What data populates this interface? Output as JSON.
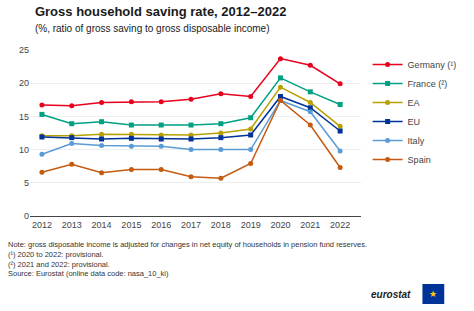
{
  "chart_data": {
    "type": "line",
    "title": "Gross household saving rate, 2012–2022",
    "subtitle": "(%, ratio of gross saving to gross disposable income)",
    "annotations": [
      "Note: gross disposable income is adjusted for changes in net equity of households in pension fund reserves.",
      "(¹) 2020 to 2022: provisional.",
      "(²) 2021 and 2022: provisional.",
      "Source: Eurostat (online data code: nasa_10_ki)",
      "eurostat",
      "★"
    ],
    "x": [
      2012,
      2013,
      2014,
      2015,
      2016,
      2017,
      2018,
      2019,
      2020,
      2021,
      2022
    ],
    "series": [
      {
        "name": "Germany (¹)",
        "color": "#e8001c",
        "marker": "circle",
        "values": [
          16.7,
          16.6,
          17.1,
          17.2,
          17.2,
          17.6,
          18.4,
          18.0,
          23.7,
          22.7,
          19.9
        ]
      },
      {
        "name": "France (²)",
        "color": "#00a082",
        "marker": "square",
        "values": [
          15.3,
          13.9,
          14.2,
          13.7,
          13.7,
          13.7,
          13.9,
          14.8,
          20.8,
          18.7,
          16.8
        ]
      },
      {
        "name": "EA",
        "color": "#b8a000",
        "marker": "circle",
        "values": [
          12.1,
          12.1,
          12.3,
          12.3,
          12.2,
          12.2,
          12.5,
          13.1,
          19.4,
          17.1,
          13.5
        ]
      },
      {
        "name": "EU",
        "color": "#003399",
        "marker": "square",
        "values": [
          11.9,
          11.8,
          11.6,
          11.7,
          11.6,
          11.6,
          11.8,
          12.2,
          18.0,
          16.3,
          12.8
        ]
      },
      {
        "name": "Italy",
        "color": "#5b9bd5",
        "marker": "circle",
        "values": [
          9.3,
          10.9,
          10.6,
          10.5,
          10.5,
          10.0,
          10.0,
          10.0,
          17.4,
          15.7,
          9.8
        ]
      },
      {
        "name": "Spain",
        "color": "#c55a11",
        "marker": "circle",
        "values": [
          6.6,
          7.8,
          6.5,
          7.0,
          7.0,
          5.9,
          5.7,
          7.9,
          17.4,
          13.7,
          7.3
        ]
      }
    ],
    "xlim": [
      2011.6,
      2022.7
    ],
    "xticks": [
      2012,
      2013,
      2014,
      2015,
      2016,
      2017,
      2018,
      2019,
      2020,
      2021,
      2022
    ],
    "ylim": [
      0,
      25
    ],
    "yticks": [
      0,
      5,
      10,
      15,
      20,
      25
    ],
    "grid": "y",
    "legend": "right"
  }
}
